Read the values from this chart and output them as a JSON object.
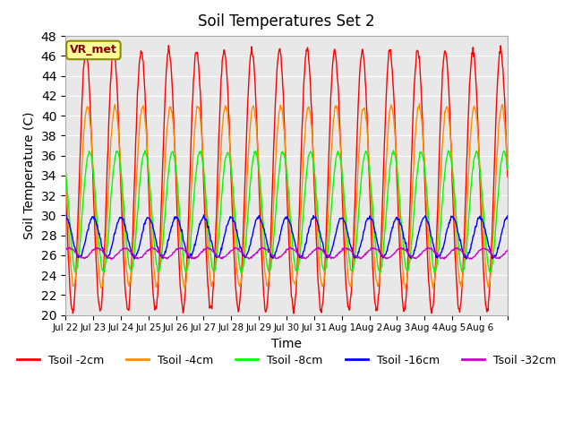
{
  "title": "Soil Temperatures Set 2",
  "xlabel": "Time",
  "ylabel": "Soil Temperature (C)",
  "ylim": [
    20,
    48
  ],
  "yticks": [
    20,
    22,
    24,
    26,
    28,
    30,
    32,
    34,
    36,
    38,
    40,
    42,
    44,
    46,
    48
  ],
  "bg_color": "#e8e8e8",
  "series_colors": {
    "Tsoil -2cm": "#ff0000",
    "Tsoil -4cm": "#ff8c00",
    "Tsoil -8cm": "#00ff00",
    "Tsoil -16cm": "#0000ff",
    "Tsoil -32cm": "#cc00cc"
  },
  "annotation_text": "VR_met",
  "annotation_color": "#8b0000",
  "annotation_bg": "#ffff99",
  "annotation_border": "#8b8b00",
  "n_days": 16,
  "x_tick_labels": [
    "Jul 22",
    "Jul 23",
    "Jul 24",
    "Jul 25",
    "Jul 26",
    "Jul 27",
    "Jul 28",
    "Jul 29",
    "Jul 30",
    "Jul 31",
    "Aug 1",
    "Aug 2",
    "Aug 3",
    "Aug 4",
    "Aug 5",
    "Aug 6",
    ""
  ],
  "samples_per_day": 48
}
